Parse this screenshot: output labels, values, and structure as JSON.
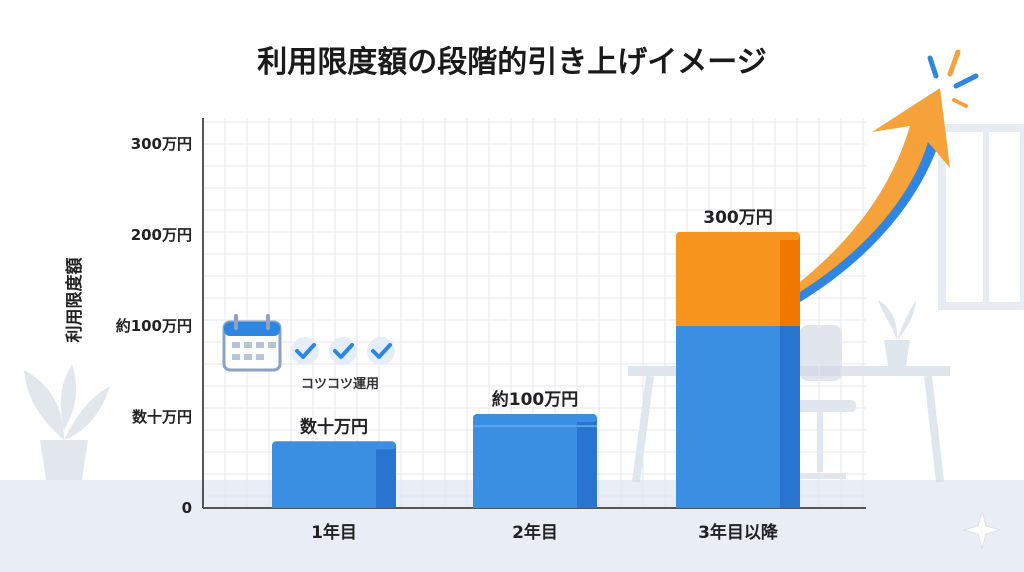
{
  "colors": {
    "bar_blue": "#3b8fe3",
    "bar_blue_dark": "#2874cf",
    "bar_orange": "#f7941d",
    "bar_orange_dark": "#f07800",
    "arrow_orange": "#f6a23a",
    "arrow_blue": "#2f86e0",
    "floor": "#e9eef6",
    "grid": "#e3e7ee"
  },
  "chart_data": {
    "type": "bar",
    "title": "利用限度額の段階的引き上げイメージ",
    "ylabel": "利用限度額",
    "categories": [
      "1年目",
      "2年目",
      "3年目以降"
    ],
    "y_ticks": [
      "0",
      "数十万円",
      "約100万円",
      "200万円",
      "300万円"
    ],
    "series": [
      {
        "values": [
          0.7,
          1.0,
          2.0
        ]
      },
      {
        "values": [
          0,
          0,
          1.0
        ]
      }
    ],
    "data_labels": [
      "数十万円",
      "約100万円",
      "300万円"
    ],
    "ylim": [
      0,
      3.5
    ],
    "grid": true
  },
  "annotation": {
    "icon": "calendar-check-icon",
    "text": "コツコツ運用"
  }
}
